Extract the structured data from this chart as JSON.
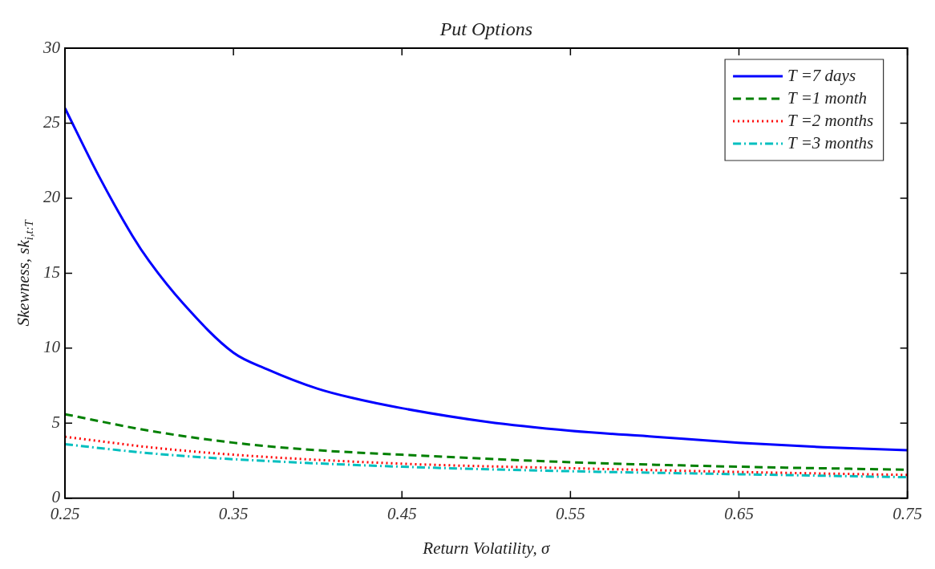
{
  "chart_data": {
    "type": "line",
    "title": "Put Options",
    "xlabel": "Return Volatility, σ",
    "ylabel": "Skewness, sk$_{i,t:T}$",
    "xlim": [
      0.25,
      0.75
    ],
    "xticks": [
      0.25,
      0.35,
      0.45,
      0.55,
      0.65,
      0.75
    ],
    "ylim": [
      0,
      30
    ],
    "yticks": [
      0,
      5,
      10,
      15,
      20,
      25,
      30
    ],
    "grid": false,
    "legend": "top right",
    "marker": "none",
    "series": [
      {
        "name": "T =7 days",
        "color": "#0000ff",
        "line_style": "solid",
        "x": [
          0.25,
          0.27,
          0.29,
          0.3,
          0.32,
          0.35,
          0.37,
          0.4,
          0.42,
          0.45,
          0.5,
          0.55,
          0.6,
          0.65,
          0.7,
          0.75
        ],
        "values": [
          26,
          21.5,
          17.5,
          15.8,
          13,
          9.7,
          8.6,
          7.3,
          6.7,
          6,
          5.1,
          4.5,
          4.1,
          3.7,
          3.4,
          3.2
        ]
      },
      {
        "name": "T =1 month",
        "color": "#008000",
        "line_style": "dashed",
        "x": [
          0.25,
          0.3,
          0.35,
          0.4,
          0.45,
          0.55,
          0.65,
          0.75
        ],
        "values": [
          5.6,
          4.5,
          3.7,
          3.2,
          2.9,
          2.4,
          2.1,
          1.9
        ]
      },
      {
        "name": "T =2 months",
        "color": "#ff0000",
        "line_style": "dotted",
        "x": [
          0.25,
          0.3,
          0.35,
          0.45,
          0.55,
          0.65,
          0.75
        ],
        "values": [
          4.1,
          3.4,
          2.9,
          2.3,
          2,
          1.75,
          1.55
        ]
      },
      {
        "name": "T =3 months",
        "color": "#00bfbf",
        "line_style": "dashdot",
        "x": [
          0.25,
          0.3,
          0.35,
          0.45,
          0.55,
          0.65,
          0.75
        ],
        "values": [
          3.6,
          3,
          2.6,
          2.1,
          1.8,
          1.6,
          1.4
        ]
      }
    ]
  }
}
